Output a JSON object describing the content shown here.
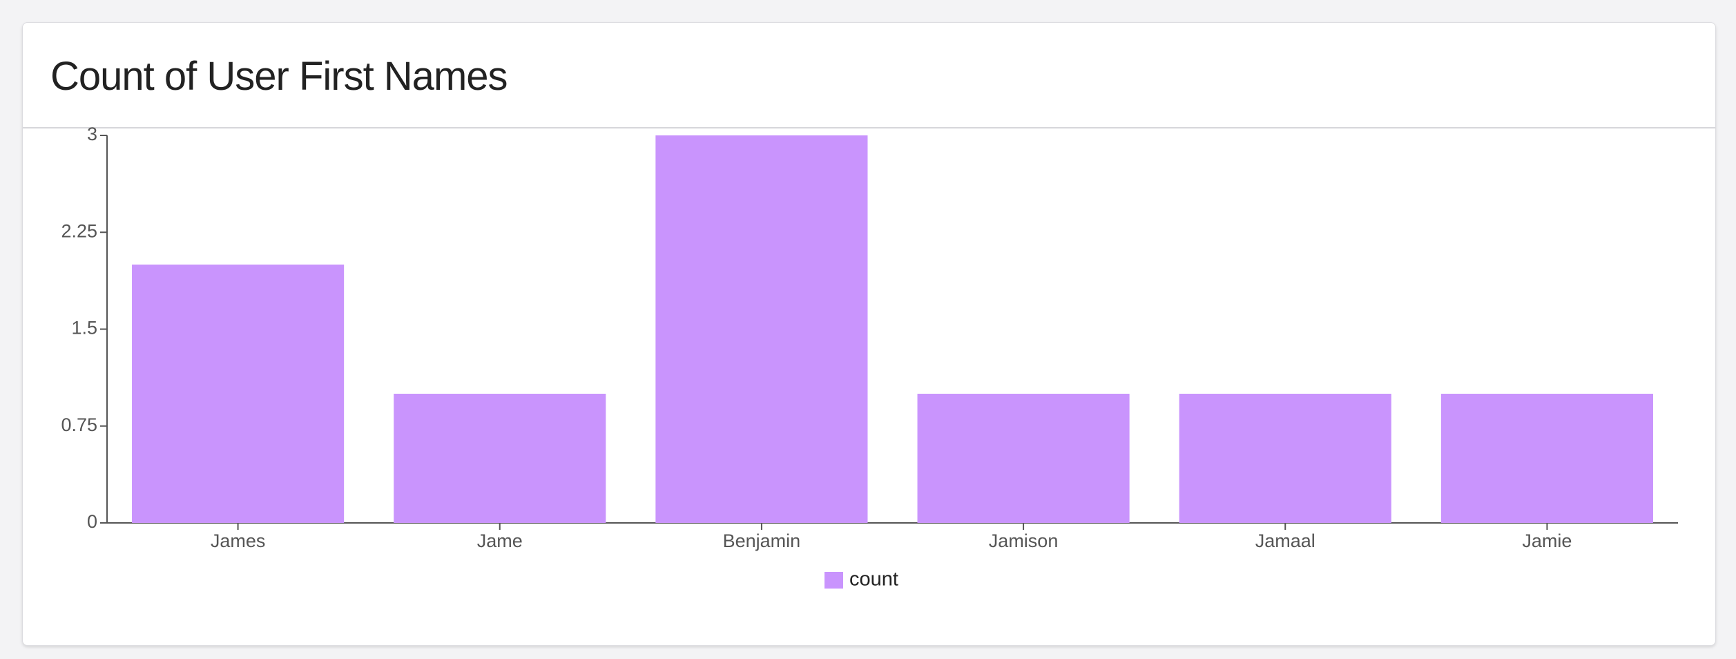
{
  "chart_data": {
    "type": "bar",
    "title": "Count of User First Names",
    "categories": [
      "James",
      "Jame",
      "Benjamin",
      "Jamison",
      "Jamaal",
      "Jamie"
    ],
    "series": [
      {
        "name": "count",
        "color": "#c994fd",
        "values": [
          2,
          1,
          3,
          1,
          1,
          1
        ]
      }
    ],
    "ylim": [
      0,
      3
    ],
    "yticks": [
      0,
      0.75,
      1.5,
      2.25,
      3
    ],
    "grid": false,
    "legend": "bottom"
  }
}
